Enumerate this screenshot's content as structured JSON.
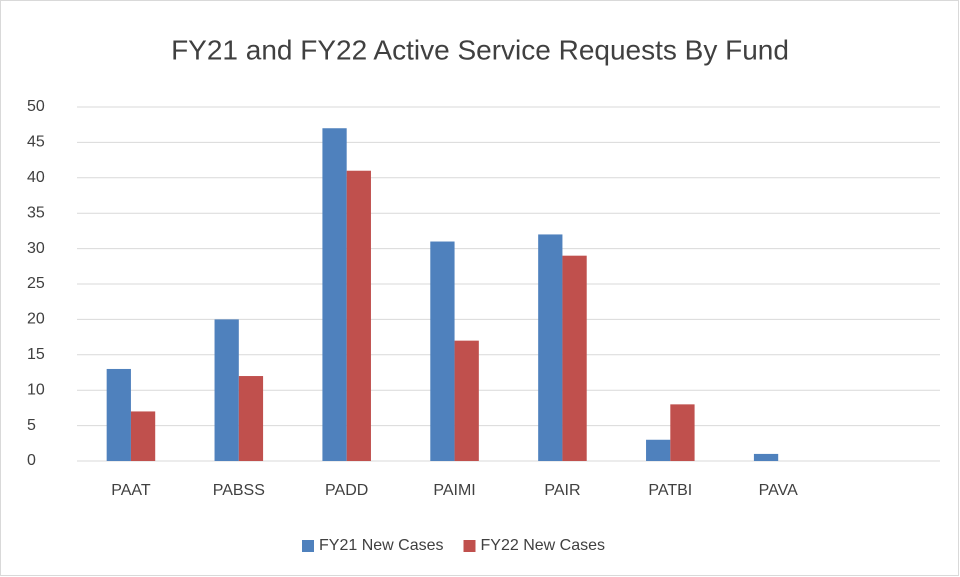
{
  "chart_data": {
    "type": "bar",
    "title": "FY21 and FY22 Active Service Requests By Fund",
    "categories": [
      "PAAT",
      "PABSS",
      "PADD",
      "PAIMI",
      "PAIR",
      "PATBI",
      "PAVA",
      null
    ],
    "series": [
      {
        "name": "FY21 New Cases",
        "color": "#4f81bd",
        "values": [
          13,
          20,
          47,
          31,
          32,
          3,
          1,
          null
        ]
      },
      {
        "name": "FY22 New Cases",
        "color": "#c0504d",
        "values": [
          7,
          12,
          41,
          17,
          29,
          8,
          0,
          null
        ]
      }
    ],
    "ylim": [
      0,
      50
    ],
    "yticks": [
      0,
      5,
      10,
      15,
      20,
      25,
      30,
      35,
      40,
      45,
      50
    ],
    "grid": true,
    "legend": "bottom"
  }
}
